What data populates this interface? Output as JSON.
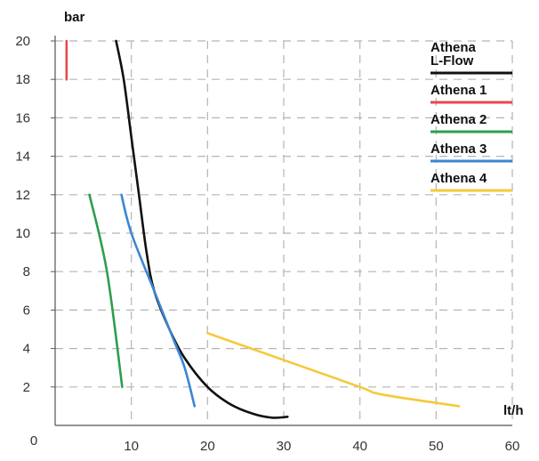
{
  "chart_data": {
    "type": "line",
    "xlabel": "lt/h",
    "ylabel": "bar",
    "xlim": [
      0,
      60
    ],
    "ylim": [
      0,
      20
    ],
    "x_ticks": [
      "0",
      "10",
      "20",
      "30",
      "40",
      "50",
      "60"
    ],
    "y_ticks": [
      "2",
      "4",
      "6",
      "8",
      "10",
      "12",
      "14",
      "16",
      "18",
      "20"
    ],
    "grid": true,
    "grid_style": "dashed",
    "legend_position": "top-right",
    "series": [
      {
        "name": "Athena L-Flow",
        "legend_lines": [
          "Athena",
          "L-Flow"
        ],
        "color": "#111111",
        "points": [
          [
            8,
            20
          ],
          [
            9,
            18
          ],
          [
            10,
            15
          ],
          [
            11,
            12
          ],
          [
            12,
            9
          ],
          [
            13,
            7
          ],
          [
            15,
            5
          ],
          [
            17,
            3.5
          ],
          [
            20,
            2
          ],
          [
            23,
            1.1
          ],
          [
            26,
            0.6
          ],
          [
            28.5,
            0.4
          ],
          [
            30.5,
            0.45
          ]
        ]
      },
      {
        "name": "Athena 1",
        "legend_lines": [
          "Athena 1"
        ],
        "color": "#e8474c",
        "points": [
          [
            1.5,
            20
          ],
          [
            1.5,
            18
          ]
        ]
      },
      {
        "name": "Athena 2",
        "legend_lines": [
          "Athena 2"
        ],
        "color": "#2e9e4f",
        "points": [
          [
            4.5,
            12
          ],
          [
            6.8,
            8
          ],
          [
            8.8,
            2
          ]
        ]
      },
      {
        "name": "Athena 3",
        "legend_lines": [
          "Athena 3"
        ],
        "color": "#3b86d4",
        "points": [
          [
            8.7,
            12
          ],
          [
            10,
            10
          ],
          [
            13,
            7
          ],
          [
            15.5,
            4.5
          ],
          [
            17,
            3
          ],
          [
            18.3,
            1
          ]
        ]
      },
      {
        "name": "Athena 4",
        "legend_lines": [
          "Athena 4"
        ],
        "color": "#f5c93a",
        "points": [
          [
            20,
            4.8
          ],
          [
            30,
            3.4
          ],
          [
            40,
            2
          ],
          [
            43,
            1.6
          ],
          [
            53,
            1
          ]
        ]
      }
    ]
  }
}
